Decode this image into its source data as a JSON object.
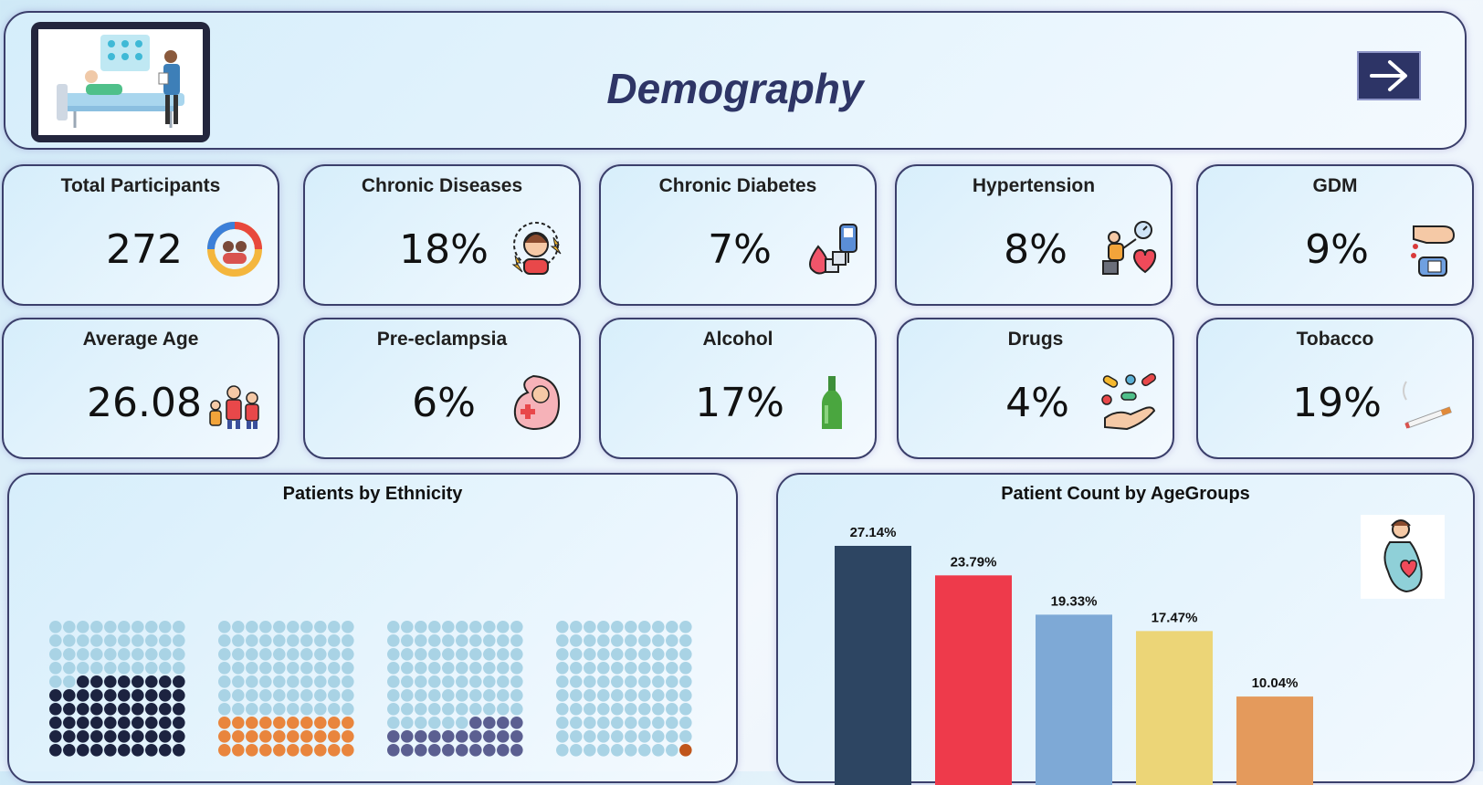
{
  "header": {
    "title": "Demography"
  },
  "kpis": [
    {
      "label": "Total Participants",
      "value": "272",
      "icon": "family-circle-icon"
    },
    {
      "label": "Chronic Diseases",
      "value": "18%",
      "icon": "stressed-woman-icon"
    },
    {
      "label": "Chronic Diabetes",
      "value": "7%",
      "icon": "glucose-meter-icon"
    },
    {
      "label": "Hypertension",
      "value": "8%",
      "icon": "blood-pressure-icon"
    },
    {
      "label": "GDM",
      "value": "9%",
      "icon": "finger-prick-icon"
    },
    {
      "label": "Average Age",
      "value": "26.08",
      "icon": "family-icon"
    },
    {
      "label": "Pre-eclampsia",
      "value": "6%",
      "icon": "fetus-icon"
    },
    {
      "label": "Alcohol",
      "value": "17%",
      "icon": "bottle-icon"
    },
    {
      "label": "Drugs",
      "value": "4%",
      "icon": "pills-hand-icon"
    },
    {
      "label": "Tobacco",
      "value": "19%",
      "icon": "cigarette-icon"
    }
  ],
  "colors": {
    "accent": "#2d3466",
    "waffle_empty": "#a9d3e5",
    "waffle_fill": [
      "#1c2340",
      "#e9853d",
      "#5b5f91",
      "#c0561c"
    ],
    "bars": [
      "#2d4562",
      "#ee3a4b",
      "#7ea9d6",
      "#ecd577",
      "#e49a5c"
    ]
  },
  "chart_data": [
    {
      "type": "waffle",
      "title": "Patients by Ethnicity",
      "grid": [
        10,
        10
      ],
      "values": [
        58,
        30,
        24,
        1
      ]
    },
    {
      "type": "bar",
      "title": "Patient Count by AgeGroups",
      "values": [
        27.14,
        23.79,
        19.33,
        17.47,
        10.04
      ],
      "data_labels": [
        "27.14%",
        "23.79%",
        "19.33%",
        "17.47%",
        "10.04%"
      ],
      "ylim": [
        0,
        30
      ]
    }
  ]
}
